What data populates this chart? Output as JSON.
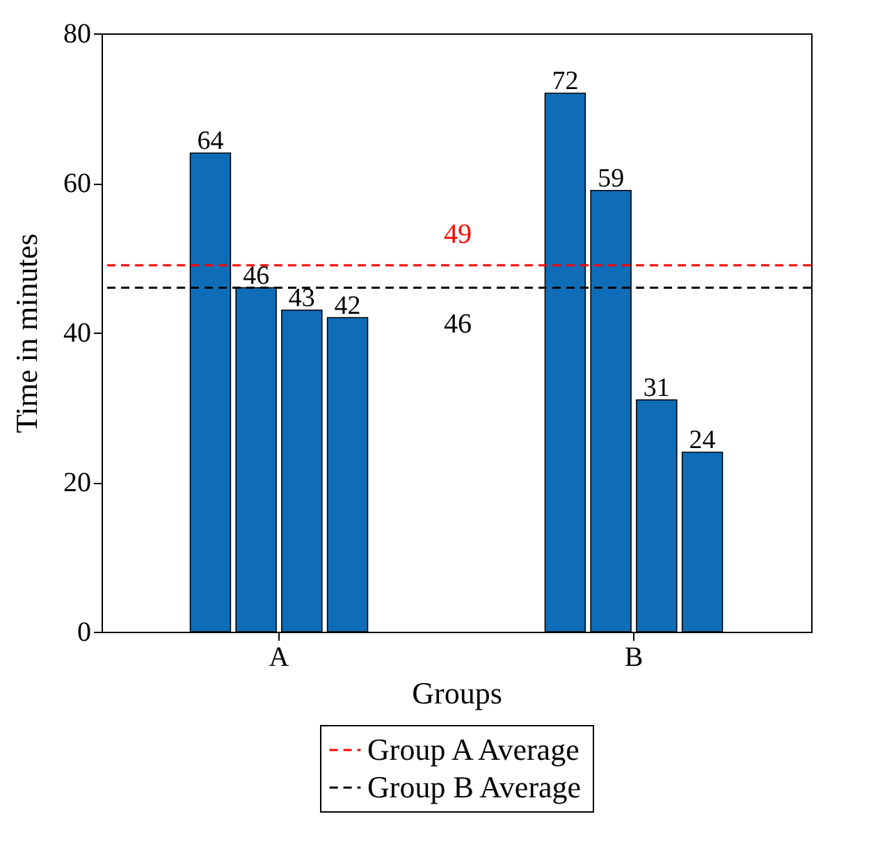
{
  "chart_data": {
    "type": "bar",
    "xlabel": "Groups",
    "ylabel": "Time in minutes",
    "categories": [
      "A",
      "B"
    ],
    "series": [
      {
        "color": "#0f6db8",
        "values": [
          64,
          72
        ]
      },
      {
        "color": "#0f6db8",
        "values": [
          46,
          59
        ]
      },
      {
        "color": "#0f6db8",
        "values": [
          43,
          31
        ]
      },
      {
        "color": "#0f6db8",
        "values": [
          42,
          24
        ]
      }
    ],
    "ylim": [
      0,
      80
    ],
    "yticks": [
      0,
      20,
      40,
      60,
      80
    ],
    "grid": false,
    "data_labels": true,
    "legend": "bottom",
    "annotations": [
      {
        "text": "49",
        "y": 49
      },
      {
        "text": "46",
        "y": 46
      }
    ],
    "ref_lines": [
      {
        "axis": "y",
        "value": 49,
        "label": "Group A Average",
        "color": "#ff0000",
        "line_style": "dashed"
      },
      {
        "axis": "y",
        "value": 46,
        "label": "Group B Average",
        "color": "#000000",
        "line_style": "dashed"
      }
    ]
  }
}
